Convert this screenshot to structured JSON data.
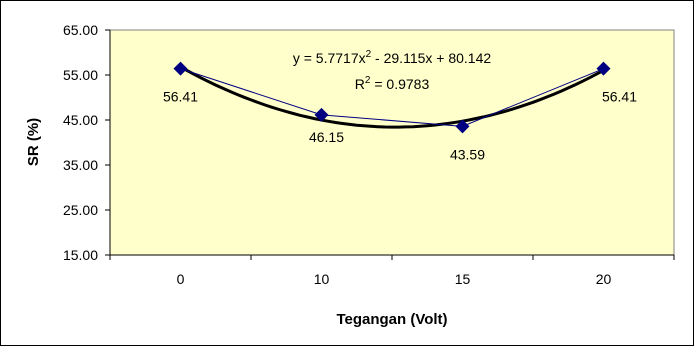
{
  "chart_data": {
    "type": "line",
    "x_label": "Tegangan (Volt)",
    "y_label": "SR (%)",
    "categories": [
      "0",
      "10",
      "15",
      "20"
    ],
    "series": [
      {
        "color": "#000080",
        "values": [
          56.41,
          46.15,
          43.59,
          56.41
        ]
      }
    ],
    "ylim": [
      15,
      65
    ],
    "yticks": [
      {
        "value": 15,
        "label": "15.00"
      },
      {
        "value": 25,
        "label": "25.00"
      },
      {
        "value": 35,
        "label": "35.00"
      },
      {
        "value": 45,
        "label": "45.00"
      },
      {
        "value": 55,
        "label": "55.00"
      },
      {
        "value": 65,
        "label": "65.00"
      }
    ],
    "trendline": {
      "type": "polynomial",
      "order": 2,
      "color": "#000000",
      "coefficients": [
        5.7717,
        -29.115,
        80.142
      ],
      "equation": {
        "start": "y = 5.7717x",
        "power": "2",
        "end": " - 29.115x + 80.142"
      },
      "r_squared": {
        "start": "R",
        "power": "2",
        "end": " = 0.9783"
      }
    },
    "plot_background": "#ffffcc"
  }
}
